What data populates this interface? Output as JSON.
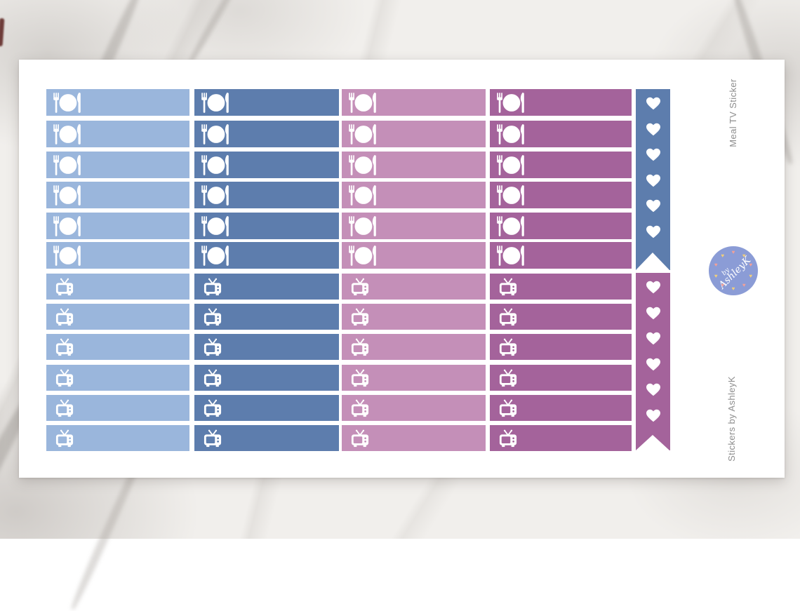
{
  "labels": {
    "side_top": "Meal TV Sticker",
    "side_bottom": "Stickers by AshleyK"
  },
  "badge": {
    "word_small": "by",
    "word_large": "AshleyK",
    "background": "#8b9cd6",
    "ring_heart_colors": [
      "#f2a098",
      "#f0ce7c"
    ],
    "ring_heart_count": 10
  },
  "colors": {
    "column1": "#9ab6dc",
    "column2": "#5d7dad",
    "column3": "#c48fb8",
    "column4": "#a4639b",
    "flag_top": "#5d7dad",
    "flag_bottom": "#a4639b",
    "sheet": "#ffffff",
    "label_text": "#8e8e8e"
  },
  "sheet": {
    "columns": 4,
    "sections": [
      {
        "name": "meal",
        "icon": "meal-plate-icon",
        "row_groups": [
          3,
          3
        ]
      },
      {
        "name": "tv",
        "icon": "tv-icon",
        "row_groups": [
          3,
          3
        ]
      }
    ],
    "flags": [
      {
        "name": "heart-checklist-flag-top",
        "color_key": "flag_top",
        "hearts": 6
      },
      {
        "name": "heart-checklist-flag-bottom",
        "color_key": "flag_bottom",
        "hearts": 6
      }
    ]
  }
}
